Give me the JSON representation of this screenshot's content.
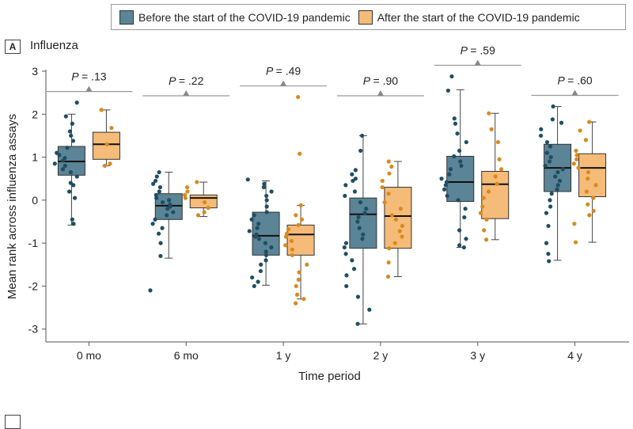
{
  "legend": {
    "before_label": "Before the start of the COVID-19 pandemic",
    "after_label": "After the start of the COVID-19 pandemic"
  },
  "panel": {
    "badge": "A",
    "title": "Influenza"
  },
  "colors": {
    "before": "#5b8496",
    "after": "#f5bb78",
    "before_dot": "#1f4e63",
    "after_dot": "#d98a1c"
  },
  "chart_data": {
    "type": "box",
    "title": "Influenza",
    "xlabel": "Time period",
    "ylabel": "Mean rank across influenza assays",
    "ylim": [
      -3.3,
      3
    ],
    "yticks": [
      -3,
      -2,
      -1,
      0,
      1,
      2,
      3
    ],
    "categories": [
      "0 mo",
      "6 mo",
      "1 y",
      "2 y",
      "3 y",
      "4 y"
    ],
    "p_values": [
      {
        "label": "P",
        "value": "= .13"
      },
      {
        "label": "P",
        "value": "= .22"
      },
      {
        "label": "P",
        "value": "= .49"
      },
      {
        "label": "P",
        "value": "= .90"
      },
      {
        "label": "P",
        "value": "= .59"
      },
      {
        "label": "P",
        "value": "= .60"
      }
    ],
    "series": [
      {
        "name": "Before the start of the COVID-19 pandemic",
        "boxes": [
          {
            "min": -0.58,
            "q1": 0.58,
            "median": 0.9,
            "q3": 1.25,
            "max": 2.0
          },
          {
            "min": -1.35,
            "q1": -0.45,
            "median": -0.13,
            "q3": 0.15,
            "max": 0.65
          },
          {
            "min": -1.98,
            "q1": -1.28,
            "median": -0.83,
            "q3": -0.28,
            "max": 0.45
          },
          {
            "min": -2.88,
            "q1": -1.12,
            "median": -0.33,
            "q3": 0.05,
            "max": 1.5
          },
          {
            "min": -1.1,
            "q1": -0.03,
            "median": 0.42,
            "q3": 1.02,
            "max": 2.57
          },
          {
            "min": -1.4,
            "q1": 0.2,
            "median": 0.75,
            "q3": 1.3,
            "max": 2.18
          }
        ],
        "points": [
          [
            2.27,
            1.95,
            1.78,
            1.6,
            1.5,
            1.38,
            1.22,
            1.1,
            1.05,
            0.98,
            0.92,
            0.85,
            0.8,
            0.72,
            0.65,
            0.55,
            0.4,
            0.35,
            0.2,
            0.05,
            -0.45,
            -0.55
          ],
          [
            0.65,
            0.55,
            0.45,
            0.38,
            0.3,
            0.2,
            0.12,
            0.05,
            0.0,
            -0.05,
            -0.1,
            -0.15,
            -0.2,
            -0.28,
            -0.35,
            -0.45,
            -0.55,
            -0.65,
            -0.78,
            -1.0,
            -1.3,
            -2.1
          ],
          [
            0.48,
            0.38,
            0.3,
            0.2,
            0.1,
            0.0,
            -0.15,
            -0.28,
            -0.35,
            -0.45,
            -0.55,
            -0.65,
            -0.72,
            -0.8,
            -0.85,
            -0.9,
            -1.0,
            -1.1,
            -1.2,
            -1.28,
            -1.4,
            -1.5,
            -1.65,
            -1.8,
            -1.9,
            -2.0
          ],
          [
            1.5,
            1.15,
            0.7,
            0.6,
            0.5,
            0.45,
            0.35,
            0.2,
            0.1,
            -0.05,
            -0.2,
            -0.3,
            -0.4,
            -0.5,
            -0.65,
            -0.8,
            -0.9,
            -1.0,
            -1.1,
            -1.25,
            -1.4,
            -1.6,
            -1.75,
            -2.0,
            -2.25,
            -2.55,
            -2.88
          ],
          [
            2.88,
            2.55,
            1.9,
            1.78,
            1.55,
            1.35,
            1.15,
            1.02,
            0.9,
            0.8,
            0.72,
            0.6,
            0.5,
            0.42,
            0.35,
            0.25,
            0.1,
            0.0,
            -0.2,
            -0.4,
            -0.7,
            -0.9,
            -1.05,
            -1.1
          ],
          [
            2.18,
            1.88,
            1.8,
            1.65,
            1.5,
            1.35,
            1.25,
            1.1,
            1.0,
            0.9,
            0.8,
            0.72,
            0.65,
            0.55,
            0.45,
            0.35,
            0.25,
            0.15,
            0.0,
            -0.15,
            -0.3,
            -0.6,
            -1.0,
            -1.25,
            -1.42
          ]
        ]
      },
      {
        "name": "After the start of the COVID-19 pandemic",
        "boxes": [
          {
            "min": 0.8,
            "q1": 0.95,
            "median": 1.3,
            "q3": 1.58,
            "max": 2.1
          },
          {
            "min": -0.38,
            "q1": -0.18,
            "median": 0.05,
            "q3": 0.12,
            "max": 0.42
          },
          {
            "min": -2.3,
            "q1": -1.28,
            "median": -0.8,
            "q3": -0.58,
            "max": -0.12
          },
          {
            "min": -1.78,
            "q1": -1.12,
            "median": -0.37,
            "q3": 0.3,
            "max": 0.9
          },
          {
            "min": -0.92,
            "q1": -0.43,
            "median": 0.37,
            "q3": 0.67,
            "max": 2.02
          },
          {
            "min": -0.98,
            "q1": 0.08,
            "median": 0.75,
            "q3": 1.08,
            "max": 1.82
          }
        ],
        "points": [
          [
            2.1,
            1.68,
            1.3,
            0.85,
            0.8
          ],
          [
            0.42,
            0.3,
            0.2,
            0.12,
            0.05,
            -0.05,
            -0.18,
            -0.28,
            -0.35
          ],
          [
            2.4,
            1.08,
            -0.12,
            -0.35,
            -0.45,
            -0.58,
            -0.68,
            -0.78,
            -0.85,
            -0.95,
            -1.05,
            -1.15,
            -1.28,
            -1.5,
            -1.68,
            -1.85,
            -2.0,
            -2.2,
            -2.3,
            -2.4
          ],
          [
            0.9,
            0.78,
            0.62,
            0.45,
            0.3,
            0.15,
            -0.05,
            -0.2,
            -0.35,
            -0.45,
            -0.6,
            -0.72,
            -0.85,
            -1.0,
            -1.12,
            -1.45,
            -1.78
          ],
          [
            2.02,
            1.65,
            1.35,
            0.95,
            0.72,
            0.55,
            0.38,
            0.2,
            0.05,
            -0.15,
            -0.3,
            -0.45,
            -0.7,
            -0.92
          ],
          [
            1.82,
            1.62,
            1.4,
            1.15,
            1.05,
            0.95,
            0.85,
            0.75,
            0.65,
            0.5,
            0.35,
            0.2,
            0.05,
            -0.1,
            -0.25,
            -0.35,
            -0.55,
            -0.98
          ]
        ]
      }
    ]
  }
}
